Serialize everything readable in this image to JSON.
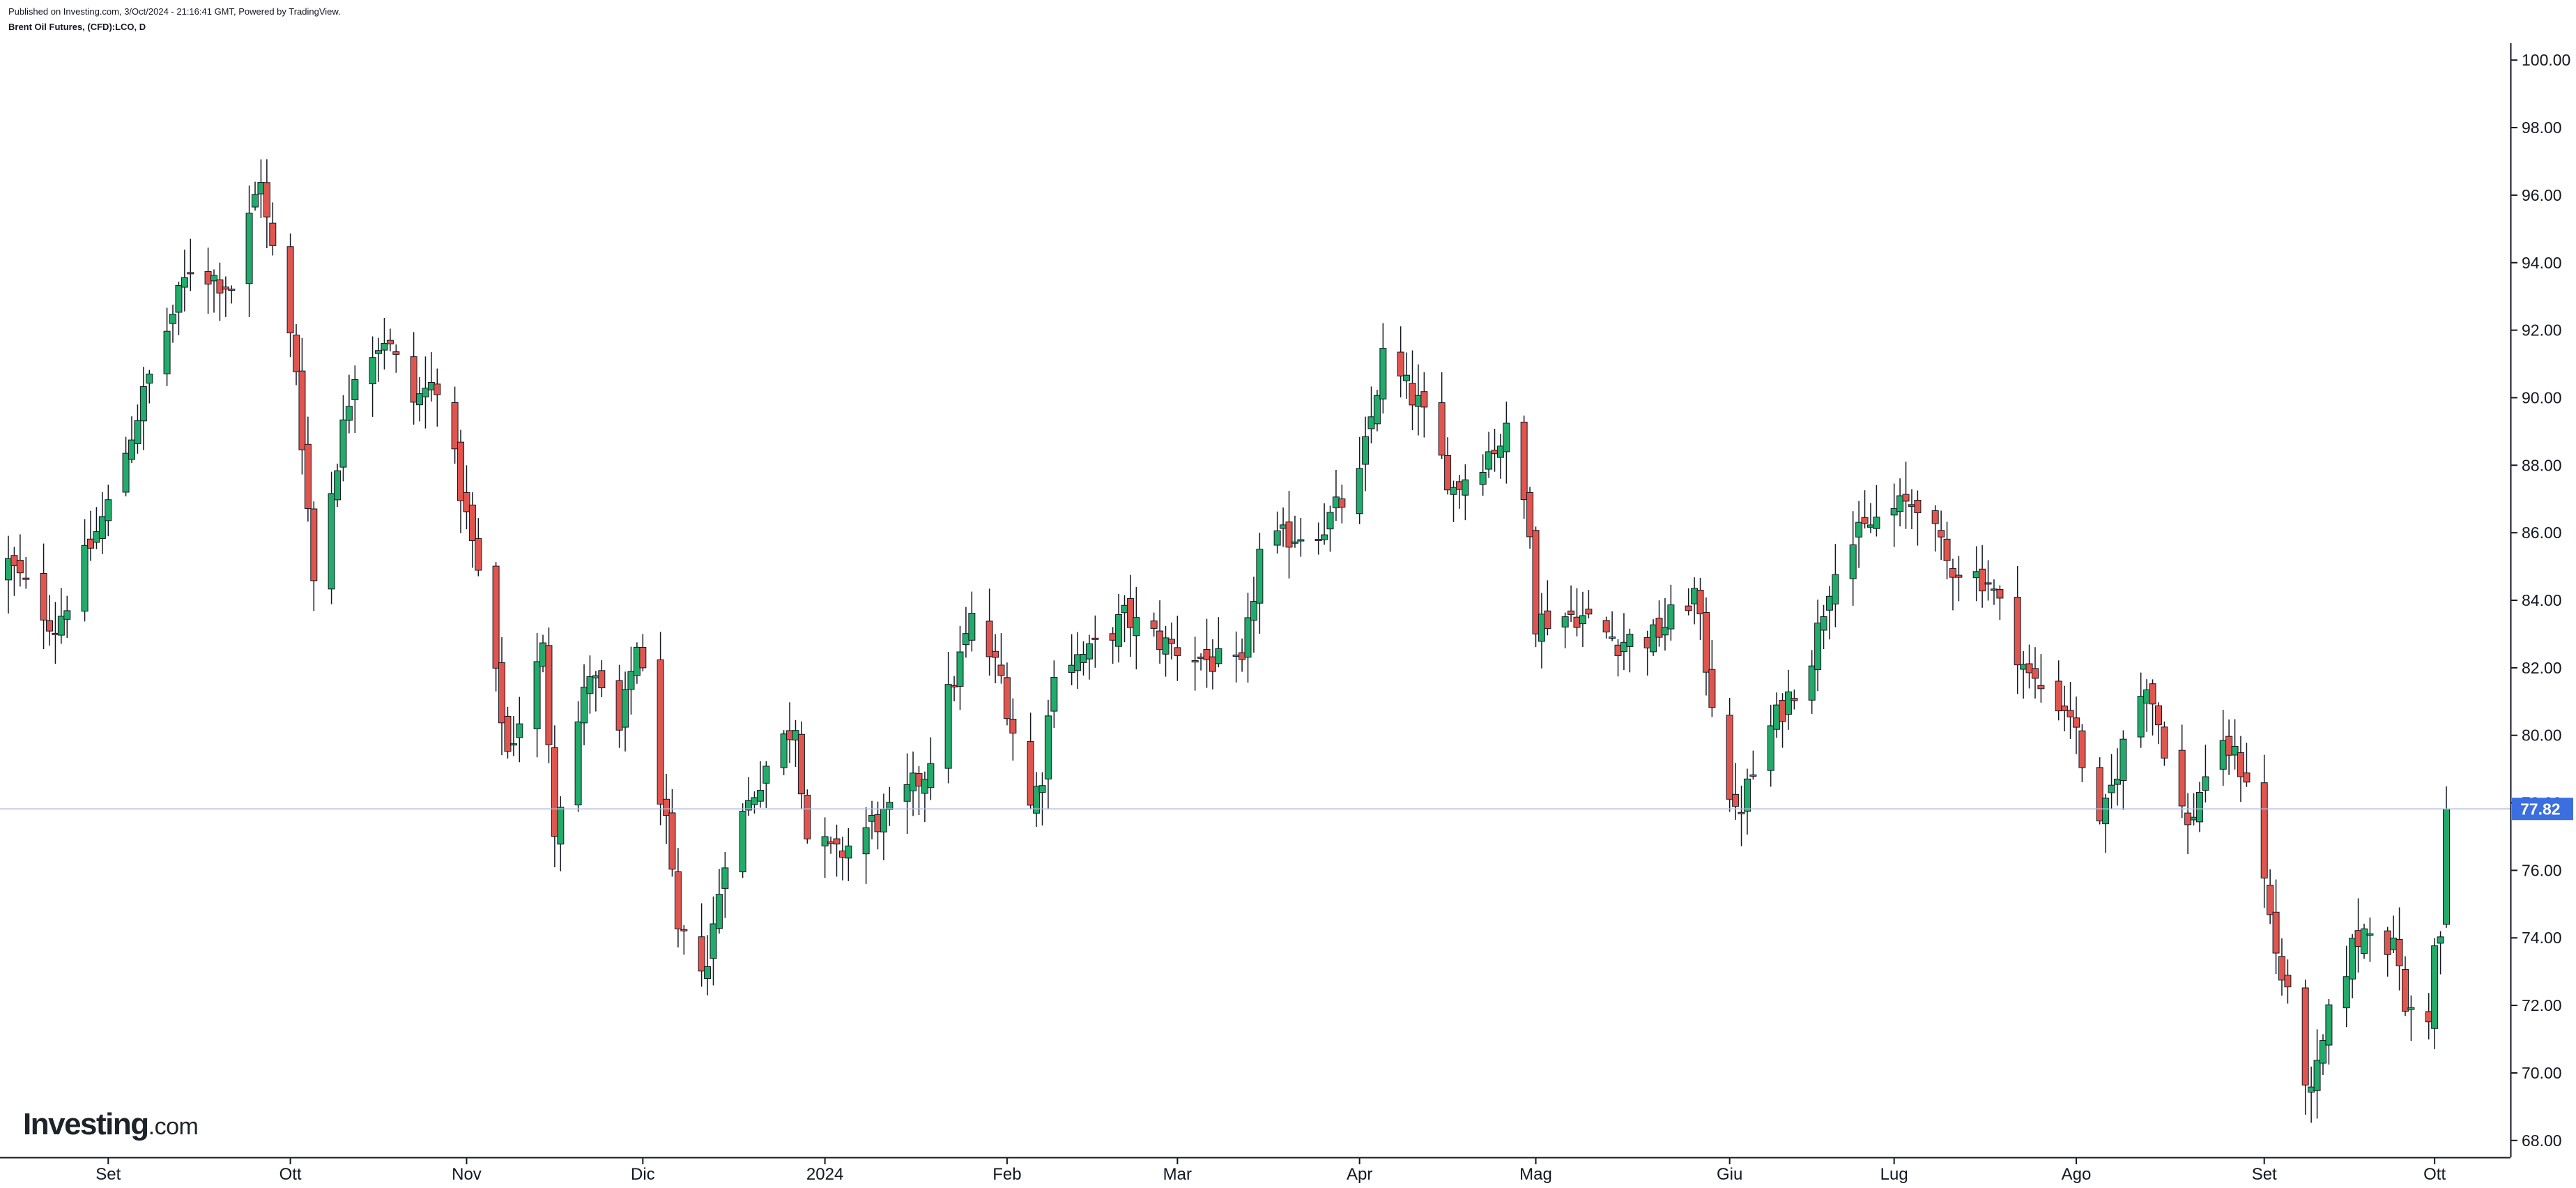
{
  "header": {
    "published": "Published on Investing.com, 3/Oct/2024 - 21:16:41 GMT, Powered by TradingView.",
    "symbol": "Brent Oil Futures, (CFD):LCO, D"
  },
  "watermark": {
    "main": "Investing",
    "suffix": ".com"
  },
  "colors": {
    "up": "#22ab6a",
    "down": "#e0564f",
    "wick": "#131722",
    "price_line": "#b3b8de",
    "price_label_bg": "#3b6fe0",
    "axis": "#131722"
  },
  "chart_data": {
    "type": "candlestick",
    "title": "Brent Oil Futures, (CFD):LCO, D",
    "grid": false,
    "ylim": [
      67.5,
      100.5
    ],
    "y_ticks": [
      "68.00",
      "70.00",
      "72.00",
      "74.00",
      "76.00",
      "78.00",
      "80.00",
      "82.00",
      "84.00",
      "86.00",
      "88.00",
      "90.00",
      "92.00",
      "94.00",
      "96.00",
      "98.00",
      "100.00"
    ],
    "x_ticks": [
      {
        "label": "Set",
        "date": "2023-09-01"
      },
      {
        "label": "Ott",
        "date": "2023-10-02"
      },
      {
        "label": "Nov",
        "date": "2023-11-01"
      },
      {
        "label": "Dic",
        "date": "2023-12-01"
      },
      {
        "label": "2024",
        "date": "2024-01-01"
      },
      {
        "label": "Feb",
        "date": "2024-02-01"
      },
      {
        "label": "Mar",
        "date": "2024-03-01"
      },
      {
        "label": "Apr",
        "date": "2024-04-01"
      },
      {
        "label": "Mag",
        "date": "2024-05-01"
      },
      {
        "label": "Giu",
        "date": "2024-06-03"
      },
      {
        "label": "Lug",
        "date": "2024-07-01"
      },
      {
        "label": "Ago",
        "date": "2024-08-01"
      },
      {
        "label": "Set",
        "date": "2024-09-02"
      },
      {
        "label": "Ott",
        "date": "2024-10-01"
      }
    ],
    "last_price": 77.82,
    "last_price_label": "77.82",
    "x_start": "2023-08-15",
    "x_end": "2024-10-03",
    "anchors": [
      [
        "2023-08-15",
        85.1
      ],
      [
        "2023-08-23",
        83.2
      ],
      [
        "2023-09-01",
        86.8
      ],
      [
        "2023-09-08",
        90.6
      ],
      [
        "2023-09-15",
        93.9
      ],
      [
        "2023-09-22",
        93.3
      ],
      [
        "2023-09-27",
        96.6
      ],
      [
        "2023-09-28",
        95.2
      ],
      [
        "2023-10-03",
        90.9
      ],
      [
        "2023-10-06",
        84.6
      ],
      [
        "2023-10-13",
        90.9
      ],
      [
        "2023-10-18",
        91.8
      ],
      [
        "2023-10-23",
        89.9
      ],
      [
        "2023-10-27",
        90.5
      ],
      [
        "2023-11-03",
        84.8
      ],
      [
        "2023-11-08",
        79.5
      ],
      [
        "2023-11-14",
        82.5
      ],
      [
        "2023-11-16",
        77.4
      ],
      [
        "2023-11-22",
        81.9
      ],
      [
        "2023-11-27",
        80.0
      ],
      [
        "2023-11-30",
        82.8
      ],
      [
        "2023-12-05",
        77.2
      ],
      [
        "2023-12-07",
        74.0
      ],
      [
        "2023-12-12",
        73.2
      ],
      [
        "2023-12-15",
        76.5
      ],
      [
        "2023-12-22",
        79.1
      ],
      [
        "2023-12-27",
        80.4
      ],
      [
        "2023-12-29",
        77.0
      ],
      [
        "2024-01-03",
        76.4
      ],
      [
        "2024-01-09",
        77.4
      ],
      [
        "2024-01-12",
        77.6
      ],
      [
        "2024-01-18",
        78.9
      ],
      [
        "2024-01-26",
        83.4
      ],
      [
        "2024-01-31",
        81.7
      ],
      [
        "2024-02-05",
        77.9
      ],
      [
        "2024-02-07",
        78.9
      ],
      [
        "2024-02-09",
        82.1
      ],
      [
        "2024-02-15",
        82.4
      ],
      [
        "2024-02-21",
        83.5
      ],
      [
        "2024-02-28",
        82.7
      ],
      [
        "2024-03-05",
        82.3
      ],
      [
        "2024-03-12",
        81.9
      ],
      [
        "2024-03-15",
        85.4
      ],
      [
        "2024-03-20",
        85.9
      ],
      [
        "2024-03-26",
        86.2
      ],
      [
        "2024-04-01",
        87.6
      ],
      [
        "2024-04-05",
        91.2
      ],
      [
        "2024-04-11",
        89.8
      ],
      [
        "2024-04-17",
        87.3
      ],
      [
        "2024-04-23",
        88.4
      ],
      [
        "2024-04-26",
        88.9
      ],
      [
        "2024-04-30",
        86.3
      ],
      [
        "2024-05-01",
        83.4
      ],
      [
        "2024-05-08",
        83.6
      ],
      [
        "2024-05-15",
        82.8
      ],
      [
        "2024-05-21",
        82.9
      ],
      [
        "2024-05-28",
        84.2
      ],
      [
        "2024-05-31",
        81.1
      ],
      [
        "2024-06-04",
        77.5
      ],
      [
        "2024-06-10",
        80.2
      ],
      [
        "2024-06-17",
        82.4
      ],
      [
        "2024-06-21",
        85.2
      ],
      [
        "2024-06-28",
        86.4
      ],
      [
        "2024-07-05",
        87.0
      ],
      [
        "2024-07-10",
        85.1
      ],
      [
        "2024-07-17",
        84.6
      ],
      [
        "2024-07-24",
        81.7
      ],
      [
        "2024-07-31",
        80.7
      ],
      [
        "2024-08-05",
        77.1
      ],
      [
        "2024-08-09",
        79.7
      ],
      [
        "2024-08-13",
        81.7
      ],
      [
        "2024-08-16",
        79.7
      ],
      [
        "2024-08-20",
        77.2
      ],
      [
        "2024-08-23",
        78.9
      ],
      [
        "2024-08-27",
        79.6
      ],
      [
        "2024-08-30",
        78.8
      ],
      [
        "2024-09-04",
        73.6
      ],
      [
        "2024-09-10",
        69.2
      ],
      [
        "2024-09-13",
        71.6
      ],
      [
        "2024-09-17",
        73.7
      ],
      [
        "2024-09-20",
        74.5
      ],
      [
        "2024-09-25",
        73.4
      ],
      [
        "2024-09-26",
        71.6
      ],
      [
        "2024-09-27",
        71.9
      ],
      [
        "2024-09-30",
        71.8
      ],
      [
        "2024-10-01",
        73.6
      ],
      [
        "2024-10-02",
        74.0
      ],
      [
        "2024-10-03",
        77.6
      ]
    ]
  }
}
